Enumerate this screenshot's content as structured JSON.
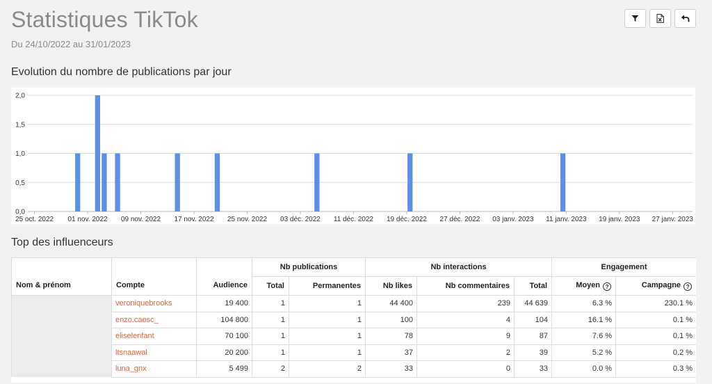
{
  "header": {
    "title": "Statistiques TikTok",
    "subtitle": "Du 24/10/2022 au 31/01/2023",
    "toolbar": [
      {
        "icon": "filter-icon"
      },
      {
        "icon": "excel-export-icon"
      },
      {
        "icon": "back-arrow-icon"
      }
    ]
  },
  "chart_section": {
    "title": "Evolution du nombre de publications par jour"
  },
  "chart_data": {
    "type": "bar",
    "title": "",
    "xlabel": "",
    "ylabel": "",
    "ylim": [
      0,
      2
    ],
    "y_ticks": [
      "0,0",
      "0,5",
      "1,0",
      "1,5",
      "2,0"
    ],
    "x_tick_labels": [
      "25 oct. 2022",
      "01 nov. 2022",
      "09 nov. 2022",
      "17 nov. 2022",
      "25 nov. 2022",
      "03 déc. 2022",
      "11 déc. 2022",
      "19 déc. 2022",
      "27 déc. 2022",
      "03 janv. 2023",
      "11 janv. 2023",
      "19 janv. 2023",
      "27 janv. 2023"
    ],
    "x_range": [
      "2022-10-24",
      "2023-01-31"
    ],
    "points": [
      {
        "date": "2022-10-31",
        "value": 1
      },
      {
        "date": "2022-11-03",
        "value": 2
      },
      {
        "date": "2022-11-04",
        "value": 1
      },
      {
        "date": "2022-11-06",
        "value": 1
      },
      {
        "date": "2022-11-15",
        "value": 1
      },
      {
        "date": "2022-11-21",
        "value": 1
      },
      {
        "date": "2022-12-06",
        "value": 1
      },
      {
        "date": "2022-12-20",
        "value": 1
      },
      {
        "date": "2023-01-12",
        "value": 1
      }
    ],
    "bar_color": "#5b8fe8",
    "grid": true
  },
  "influencers_section": {
    "title": "Top des influenceurs"
  },
  "table": {
    "group_headers": {
      "publications": "Nb publications",
      "interactions": "Nb interactions",
      "engagement": "Engagement"
    },
    "columns": {
      "name": "Nom & prénom",
      "account": "Compte",
      "audience": "Audience",
      "pub_total": "Total",
      "pub_permanent": "Permanentes",
      "likes": "Nb likes",
      "comments": "Nb commentaires",
      "int_total": "Total",
      "eng_avg": "Moyen",
      "eng_campaign": "Campagne"
    },
    "rows": [
      {
        "account": "veroniquebrooks",
        "audience": "19 400",
        "pub_total": "1",
        "pub_permanent": "1",
        "likes": "44 400",
        "comments": "239",
        "int_total": "44 639",
        "eng_avg": "6.3 %",
        "eng_campaign": "230.1 %"
      },
      {
        "account": "enzo.caesc_",
        "audience": "104 800",
        "pub_total": "1",
        "pub_permanent": "1",
        "likes": "100",
        "comments": "4",
        "int_total": "104",
        "eng_avg": "16.1 %",
        "eng_campaign": "0.1 %"
      },
      {
        "account": "eliselenfant",
        "audience": "70 100",
        "pub_total": "1",
        "pub_permanent": "1",
        "likes": "78",
        "comments": "9",
        "int_total": "87",
        "eng_avg": "7.6 %",
        "eng_campaign": "0.1 %"
      },
      {
        "account": "ltsnaawal",
        "audience": "20 200",
        "pub_total": "1",
        "pub_permanent": "1",
        "likes": "37",
        "comments": "2",
        "int_total": "39",
        "eng_avg": "5.2 %",
        "eng_campaign": "0.2 %"
      },
      {
        "account": "luna_gnx",
        "audience": "5 499",
        "pub_total": "2",
        "pub_permanent": "2",
        "likes": "33",
        "comments": "0",
        "int_total": "33",
        "eng_avg": "0.0 %",
        "eng_campaign": "0.3 %"
      }
    ],
    "link_color": "#e0653a"
  }
}
